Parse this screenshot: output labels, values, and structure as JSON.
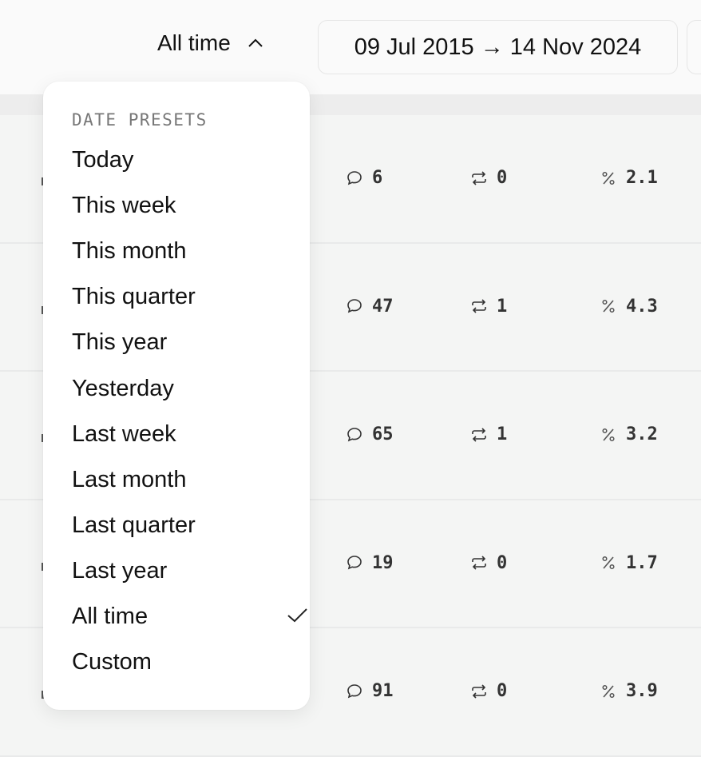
{
  "header": {
    "preset_label": "All time",
    "date_range": "09 Jul 2015 → 14 Nov 2024"
  },
  "rows": [
    {
      "comments": "6",
      "reposts": "0",
      "rate": "2.1"
    },
    {
      "comments": "47",
      "reposts": "1",
      "rate": "4.3"
    },
    {
      "comments": "65",
      "reposts": "1",
      "rate": "3.2"
    },
    {
      "comments": "19",
      "reposts": "0",
      "rate": "1.7"
    },
    {
      "comments": "91",
      "reposts": "0",
      "rate": "3.9"
    }
  ],
  "menu": {
    "heading": "DATE PRESETS",
    "items": [
      "Today",
      "This week",
      "This month",
      "This quarter",
      "This year",
      "Yesterday",
      "Last week",
      "Last month",
      "Last quarter",
      "Last year",
      "All time",
      "Custom"
    ],
    "selected": "All time"
  }
}
